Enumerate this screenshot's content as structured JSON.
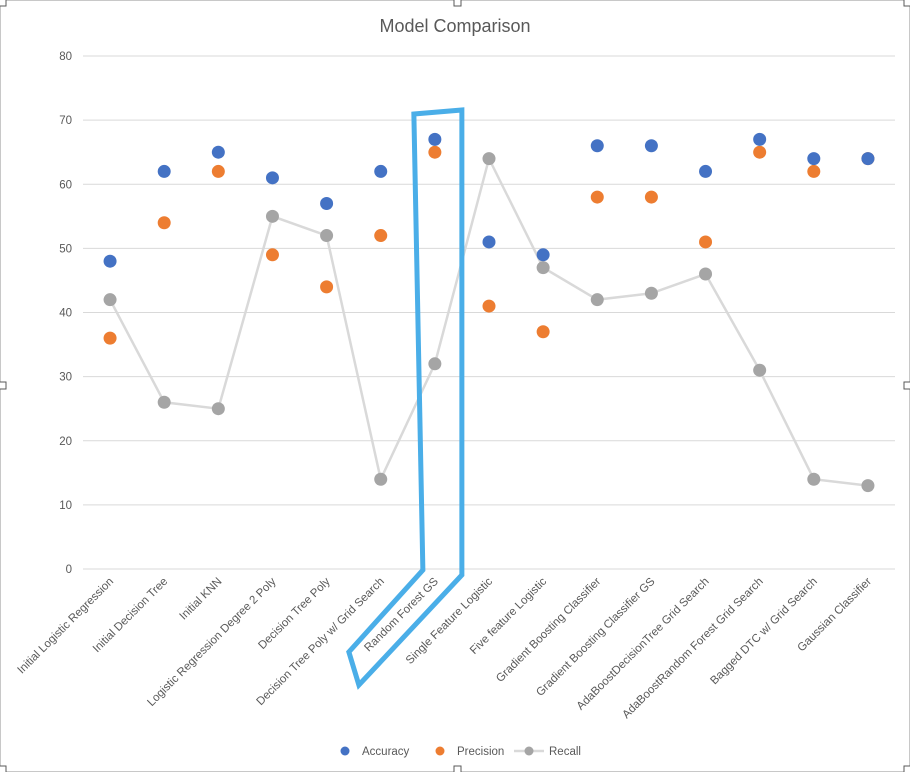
{
  "chart_data": {
    "type": "line",
    "title": "Model Comparison",
    "xlabel": "",
    "ylabel": "",
    "ylim": [
      0,
      80
    ],
    "yticks": [
      0,
      10,
      20,
      30,
      40,
      50,
      60,
      70,
      80
    ],
    "grid": true,
    "legend_position": "bottom",
    "categories": [
      "Initial Logistic Regression",
      "Initial Decision Tree",
      "Initial KNN",
      "Logistic Regression Degree 2 Poly",
      "Decision Tree Poly",
      "Decision Tree Poly w/ Grid Search",
      "Random Forest GS",
      "Single Feature Logistic",
      "Five feature Logistic",
      "Gradient Boosting Classifier",
      "Gradient Boosting Classifier GS",
      "AdaBoostDecisionTree Grid Search",
      "AdaBoostRandom Forest Grid Search",
      "Bagged DTC w/ Grid Search",
      "Gaussian Classifier"
    ],
    "series": [
      {
        "name": "Accuracy",
        "color": "#4472C4",
        "line": false,
        "values": [
          48,
          62,
          65,
          61,
          57,
          62,
          67,
          51,
          49,
          66,
          66,
          62,
          67,
          64,
          64
        ]
      },
      {
        "name": "Precision",
        "color": "#ED7D31",
        "line": false,
        "values": [
          36,
          54,
          62,
          49,
          44,
          52,
          65,
          41,
          37,
          58,
          58,
          51,
          65,
          62,
          64
        ]
      },
      {
        "name": "Recall",
        "color": "#A5A5A5",
        "line": true,
        "line_color": "#D9D9D9",
        "values": [
          42,
          26,
          25,
          55,
          52,
          14,
          32,
          64,
          47,
          42,
          43,
          46,
          31,
          14,
          13
        ]
      }
    ],
    "annotation": {
      "shape": "outline-highlight",
      "color": "#4AAEE8",
      "category": "Random Forest GS"
    },
    "gridline_color": "#D9D9D9"
  }
}
